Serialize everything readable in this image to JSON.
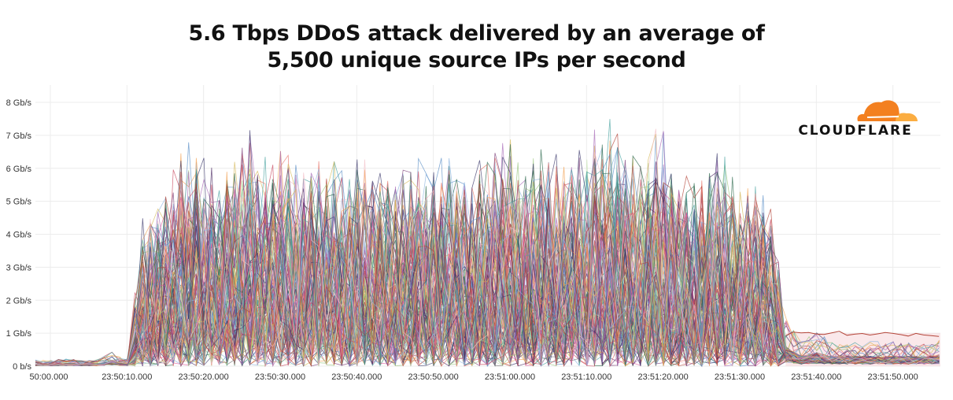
{
  "chart_data": {
    "type": "line",
    "title": "5.6 Tbps DDoS attack delivered by an average of 5,500 unique source IPs per second",
    "title_lines": [
      "5.6 Tbps DDoS attack delivered by an average of",
      "5,500 unique source IPs per second"
    ],
    "xlabel": "",
    "ylabel": "",
    "y_tick_labels": [
      "0 b/s",
      "1 Gb/s",
      "2 Gb/s",
      "3 Gb/s",
      "4 Gb/s",
      "5 Gb/s",
      "6 Gb/s",
      "7 Gb/s",
      "8 Gb/s"
    ],
    "ylim": [
      0,
      8.2
    ],
    "y_unit": "Gb/s",
    "x_tick_labels": [
      "50:00.000",
      "23:50:10.000",
      "23:50:20.000",
      "23:50:30.000",
      "23:50:40.000",
      "23:50:50.000",
      "23:51:00.000",
      "23:51:10.000",
      "23:51:20.000",
      "23:51:30.000",
      "23:51:40.000",
      "23:51:50.000"
    ],
    "xlim": [
      "23:49:58",
      "23:51:56"
    ],
    "grid": true,
    "legend": "none",
    "description_of_series": "many overlapping per-source lines",
    "peak_envelope": {
      "x": [
        "23:49:58",
        "23:50:00",
        "23:50:02",
        "23:50:04",
        "23:50:06",
        "23:50:08",
        "23:50:10",
        "23:50:12",
        "23:50:14",
        "23:50:16",
        "23:50:18",
        "23:50:20",
        "23:50:22",
        "23:50:24",
        "23:50:26",
        "23:50:28",
        "23:50:30",
        "23:50:32",
        "23:50:34",
        "23:50:36",
        "23:50:38",
        "23:50:40",
        "23:50:42",
        "23:50:44",
        "23:50:46",
        "23:50:48",
        "23:50:50",
        "23:50:52",
        "23:50:54",
        "23:50:56",
        "23:50:58",
        "23:51:00",
        "23:51:02",
        "23:51:04",
        "23:51:06",
        "23:51:08",
        "23:51:10",
        "23:51:12",
        "23:51:14",
        "23:51:16",
        "23:51:18",
        "23:51:20",
        "23:51:22",
        "23:51:24",
        "23:51:26",
        "23:51:28",
        "23:51:30",
        "23:51:32",
        "23:51:34",
        "23:51:36",
        "23:51:38",
        "23:51:40",
        "23:51:42",
        "23:51:44",
        "23:51:46",
        "23:51:48",
        "23:51:50",
        "23:51:52",
        "23:51:54",
        "23:51:56"
      ],
      "values": [
        0.25,
        0.25,
        0.3,
        0.25,
        0.25,
        0.6,
        0.2,
        4.5,
        5.5,
        6.2,
        7.2,
        6.5,
        6.3,
        7.0,
        7.4,
        6.5,
        7.0,
        6.5,
        7.0,
        6.7,
        6.2,
        6.5,
        6.3,
        6.0,
        6.4,
        6.5,
        6.3,
        6.8,
        6.2,
        6.7,
        6.8,
        7.3,
        6.5,
        7.0,
        6.5,
        6.7,
        7.2,
        7.7,
        7.5,
        6.7,
        7.0,
        7.5,
        6.0,
        6.0,
        6.4,
        6.7,
        5.5,
        5.9,
        5.0,
        2.0,
        1.0,
        1.4,
        1.0,
        1.0,
        1.0,
        1.0,
        1.0,
        1.0,
        1.0,
        1.1
      ]
    },
    "colors": [
      "#e8766a",
      "#5b8fc7",
      "#7c3f7a",
      "#f2a154",
      "#9ac77d",
      "#c94c63",
      "#4aa3a0",
      "#3d3b6e",
      "#d6b85a",
      "#a86bb8",
      "#8fb6e0",
      "#b4463a",
      "#6d6d6d",
      "#f3c0c8",
      "#2f6b4f",
      "#e05a9a",
      "#c9e6b8",
      "#4b2a63"
    ],
    "brand_color": "#f38020",
    "brand_color_light": "#fbad41"
  },
  "logo": {
    "text": "CLOUDFLARE"
  }
}
